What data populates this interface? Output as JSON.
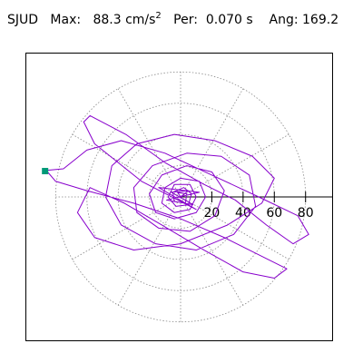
{
  "header": {
    "station": "SJUD",
    "max_label": "Max:",
    "max_value": "88.3",
    "max_unit": "cm/s",
    "max_unit_exp": "2",
    "per_label": "Per:",
    "per_value": "0.070 s",
    "ang_label": "Ang:",
    "ang_value": "169.2"
  },
  "colors": {
    "trace": "#8800cc",
    "marker": "#009977",
    "grid": "#888888",
    "axis": "#000000"
  },
  "chart_data": {
    "type": "polar-particle-motion",
    "radial_ticks": [
      "20",
      "40",
      "60",
      "80"
    ],
    "radial_values": [
      20,
      40,
      60,
      80
    ],
    "rmax": 88.3,
    "angular_grid_deg": [
      0,
      30,
      60,
      90,
      120,
      150,
      180,
      210,
      240,
      270,
      300,
      330
    ],
    "polar_axis_angle_deg": 0,
    "peak": {
      "value": 88.3,
      "angle_deg": 169.2
    },
    "trace": [
      [
        0,
        0
      ],
      [
        5,
        4
      ],
      [
        -6,
        3
      ],
      [
        8,
        -5
      ],
      [
        -9,
        -2
      ],
      [
        12,
        3
      ],
      [
        -14,
        6
      ],
      [
        10,
        -8
      ],
      [
        -25,
        10
      ],
      [
        -40,
        22
      ],
      [
        -55,
        34
      ],
      [
        -62,
        48
      ],
      [
        -58,
        52
      ],
      [
        -35,
        40
      ],
      [
        -10,
        22
      ],
      [
        15,
        8
      ],
      [
        35,
        -2
      ],
      [
        55,
        -18
      ],
      [
        72,
        -30
      ],
      [
        82,
        -24
      ],
      [
        75,
        -12
      ],
      [
        50,
        0
      ],
      [
        20,
        14
      ],
      [
        -10,
        28
      ],
      [
        -38,
        36
      ],
      [
        -60,
        30
      ],
      [
        -75,
        18
      ],
      [
        -86,
        17
      ],
      [
        -80,
        10
      ],
      [
        -60,
        4
      ],
      [
        -30,
        -4
      ],
      [
        0,
        -14
      ],
      [
        28,
        -26
      ],
      [
        52,
        -38
      ],
      [
        68,
        -46
      ],
      [
        60,
        -52
      ],
      [
        40,
        -48
      ],
      [
        15,
        -34
      ],
      [
        -12,
        -18
      ],
      [
        -36,
        -4
      ],
      [
        -58,
        6
      ],
      [
        -66,
        -10
      ],
      [
        -55,
        -26
      ],
      [
        -30,
        -34
      ],
      [
        0,
        -30
      ],
      [
        30,
        -18
      ],
      [
        52,
        -4
      ],
      [
        60,
        12
      ],
      [
        46,
        26
      ],
      [
        22,
        36
      ],
      [
        -4,
        40
      ],
      [
        -28,
        34
      ],
      [
        -44,
        20
      ],
      [
        -48,
        0
      ],
      [
        -38,
        -18
      ],
      [
        -16,
        -30
      ],
      [
        10,
        -34
      ],
      [
        34,
        -24
      ],
      [
        48,
        -6
      ],
      [
        44,
        14
      ],
      [
        26,
        26
      ],
      [
        4,
        28
      ],
      [
        -18,
        20
      ],
      [
        -30,
        6
      ],
      [
        -28,
        -10
      ],
      [
        -14,
        -20
      ],
      [
        6,
        -22
      ],
      [
        22,
        -12
      ],
      [
        28,
        4
      ],
      [
        20,
        16
      ],
      [
        4,
        20
      ],
      [
        -12,
        14
      ],
      [
        -20,
        2
      ],
      [
        -16,
        -10
      ],
      [
        -4,
        -14
      ],
      [
        10,
        -10
      ],
      [
        16,
        0
      ],
      [
        12,
        10
      ],
      [
        0,
        12
      ],
      [
        -10,
        6
      ],
      [
        -12,
        -4
      ],
      [
        -4,
        -10
      ],
      [
        6,
        -8
      ],
      [
        10,
        0
      ],
      [
        6,
        8
      ],
      [
        -4,
        8
      ],
      [
        -8,
        0
      ],
      [
        -3,
        -6
      ],
      [
        5,
        -5
      ],
      [
        7,
        2
      ],
      [
        2,
        6
      ],
      [
        -5,
        3
      ],
      [
        -4,
        -3
      ],
      [
        3,
        -4
      ],
      [
        4,
        2
      ],
      [
        -2,
        3
      ],
      [
        0,
        0
      ]
    ]
  }
}
